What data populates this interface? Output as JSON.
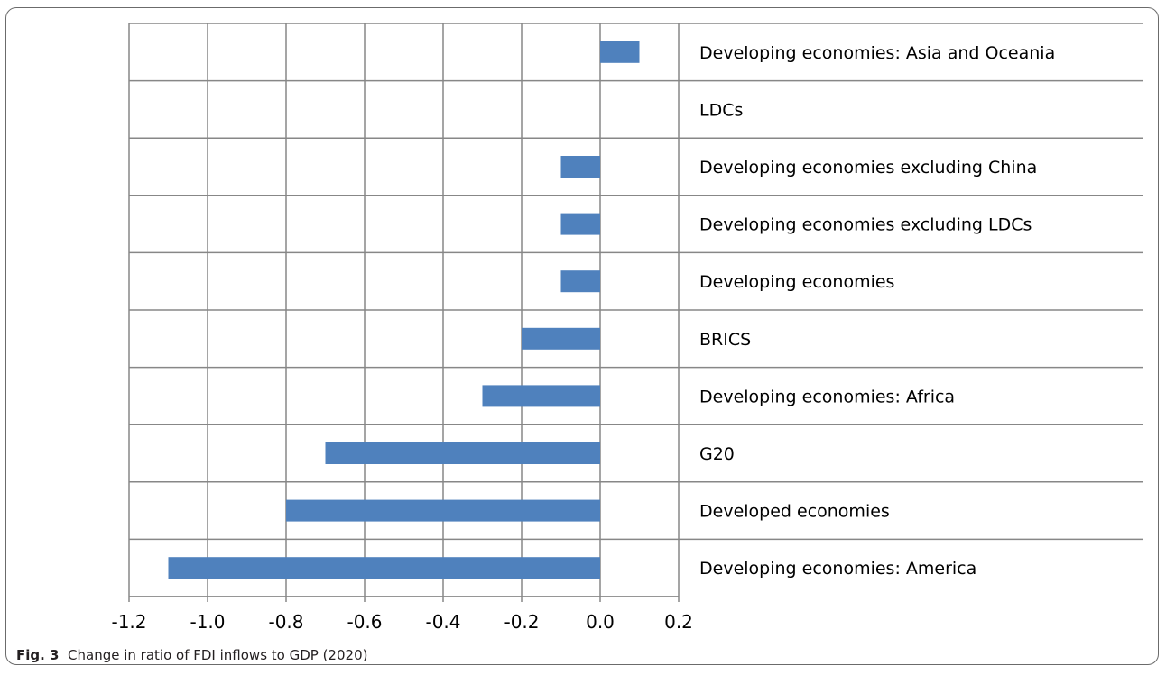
{
  "chart_data": {
    "type": "bar",
    "orientation": "horizontal",
    "categories": [
      "Developing economies: Asia and Oceania",
      "LDCs",
      "Developing economies excluding China",
      "Developing economies excluding LDCs",
      "Developing economies",
      "BRICS",
      "Developing economies: Africa",
      "G20",
      "Developed economies",
      "Developing economies: America"
    ],
    "values": [
      0.1,
      0.0,
      -0.1,
      -0.1,
      -0.1,
      -0.2,
      -0.3,
      -0.7,
      -0.8,
      -1.1
    ],
    "xlim": [
      -1.2,
      0.2
    ],
    "x_ticks": [
      "-1.2",
      "-1.0",
      "-0.8",
      "-0.6",
      "-0.4",
      "-0.2",
      "0.0",
      "0.2"
    ],
    "grid": true,
    "bar_color": "#4f81bd",
    "category_label_position": "right"
  },
  "caption": {
    "label": "Fig. 3",
    "text": "Change in ratio of FDI inflows to GDP (2020)"
  }
}
